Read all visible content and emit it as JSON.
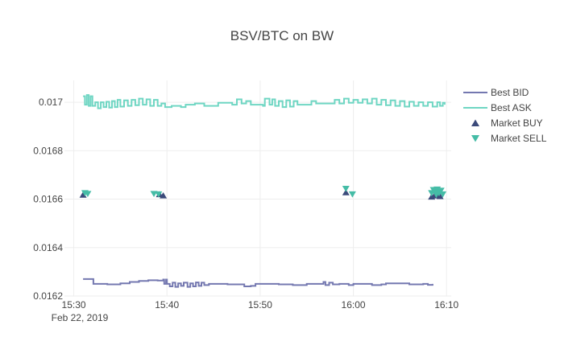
{
  "chart_data": {
    "type": "line",
    "title": "BSV/BTC on BW",
    "xlabel": "",
    "ylabel": "",
    "x_range_minutes": [
      -1,
      40.5
    ],
    "ylim": [
      0.0162,
      0.01709
    ],
    "y_ticks": [
      {
        "value": 0.0162,
        "label": "0.0162"
      },
      {
        "value": 0.0164,
        "label": "0.0164"
      },
      {
        "value": 0.0166,
        "label": "0.0166"
      },
      {
        "value": 0.0168,
        "label": "0.0168"
      },
      {
        "value": 0.017,
        "label": "0.017"
      }
    ],
    "x_ticks": [
      {
        "minute": 0,
        "label": "15:30"
      },
      {
        "minute": 10,
        "label": "15:40"
      },
      {
        "minute": 20,
        "label": "15:50"
      },
      {
        "minute": 30,
        "label": "16:00"
      },
      {
        "minute": 40,
        "label": "16:10"
      }
    ],
    "x_date_label": "Feb 22, 2019",
    "legend_position": "top-right",
    "grid": true,
    "series": [
      {
        "name": "Best BID",
        "kind": "line",
        "color": "#7478b0",
        "points": [
          [
            1.0,
            0.01627
          ],
          [
            2.0,
            0.01627
          ],
          [
            2.1,
            0.01625
          ],
          [
            3.5,
            0.01625
          ],
          [
            3.6,
            0.016248
          ],
          [
            5.0,
            0.016252
          ],
          [
            6.0,
            0.016258
          ],
          [
            7.0,
            0.016262
          ],
          [
            8.0,
            0.016265
          ],
          [
            9.0,
            0.016264
          ],
          [
            9.6,
            0.016268
          ],
          [
            9.7,
            0.01625
          ],
          [
            9.9,
            0.016268
          ],
          [
            10.0,
            0.01625
          ],
          [
            10.3,
            0.01624
          ],
          [
            10.6,
            0.016255
          ],
          [
            10.9,
            0.016238
          ],
          [
            11.2,
            0.016252
          ],
          [
            11.5,
            0.016242
          ],
          [
            11.8,
            0.016255
          ],
          [
            12.2,
            0.016238
          ],
          [
            12.5,
            0.016252
          ],
          [
            12.8,
            0.01624
          ],
          [
            13.1,
            0.016256
          ],
          [
            13.4,
            0.016242
          ],
          [
            13.7,
            0.016255
          ],
          [
            14.0,
            0.016245
          ],
          [
            14.5,
            0.01625
          ],
          [
            15.5,
            0.01625
          ],
          [
            16.5,
            0.016248
          ],
          [
            17.5,
            0.016248
          ],
          [
            18.2,
            0.016248
          ],
          [
            18.3,
            0.01624
          ],
          [
            19.0,
            0.016242
          ],
          [
            19.5,
            0.01625
          ],
          [
            21.0,
            0.01625
          ],
          [
            22.0,
            0.016248
          ],
          [
            23.0,
            0.016248
          ],
          [
            23.5,
            0.016245
          ],
          [
            25.0,
            0.01625
          ],
          [
            26.5,
            0.01625
          ],
          [
            26.8,
            0.016258
          ],
          [
            27.0,
            0.016245
          ],
          [
            27.4,
            0.016255
          ],
          [
            27.8,
            0.016248
          ],
          [
            28.5,
            0.01625
          ],
          [
            29.5,
            0.016245
          ],
          [
            30.0,
            0.01625
          ],
          [
            31.0,
            0.01625
          ],
          [
            32.0,
            0.016245
          ],
          [
            33.0,
            0.016248
          ],
          [
            33.5,
            0.016252
          ],
          [
            35.0,
            0.016252
          ],
          [
            36.0,
            0.016248
          ],
          [
            37.0,
            0.016248
          ],
          [
            37.5,
            0.01625
          ],
          [
            38.0,
            0.016246
          ],
          [
            38.5,
            0.01625
          ]
        ]
      },
      {
        "name": "Best ASK",
        "kind": "line",
        "color": "#6fd6c3",
        "points": [
          [
            1.0,
            0.017025
          ],
          [
            1.2,
            0.01699
          ],
          [
            1.4,
            0.01703
          ],
          [
            1.6,
            0.016985
          ],
          [
            1.8,
            0.017025
          ],
          [
            2.0,
            0.016985
          ],
          [
            2.3,
            0.017
          ],
          [
            2.6,
            0.016975
          ],
          [
            2.9,
            0.017
          ],
          [
            3.2,
            0.01698
          ],
          [
            3.5,
            0.017002
          ],
          [
            3.8,
            0.016978
          ],
          [
            4.1,
            0.017005
          ],
          [
            4.4,
            0.01698
          ],
          [
            4.7,
            0.01701
          ],
          [
            5.0,
            0.016982
          ],
          [
            5.4,
            0.017008
          ],
          [
            5.8,
            0.016985
          ],
          [
            6.2,
            0.01701
          ],
          [
            6.6,
            0.016988
          ],
          [
            7.0,
            0.017015
          ],
          [
            7.4,
            0.01699
          ],
          [
            7.8,
            0.017012
          ],
          [
            8.2,
            0.016985
          ],
          [
            8.6,
            0.01701
          ],
          [
            9.0,
            0.016985
          ],
          [
            9.4,
            0.016995
          ],
          [
            9.8,
            0.01698
          ],
          [
            10.5,
            0.016985
          ],
          [
            11.5,
            0.01698
          ],
          [
            12.0,
            0.01699
          ],
          [
            13.0,
            0.016995
          ],
          [
            14.0,
            0.016985
          ],
          [
            15.0,
            0.016985
          ],
          [
            15.5,
            0.016998
          ],
          [
            16.5,
            0.016998
          ],
          [
            17.0,
            0.01699
          ],
          [
            17.5,
            0.017012
          ],
          [
            18.0,
            0.016995
          ],
          [
            18.5,
            0.017005
          ],
          [
            19.0,
            0.01699
          ],
          [
            20.0,
            0.01699
          ],
          [
            20.3,
            0.016985
          ],
          [
            20.5,
            0.017015
          ],
          [
            21.0,
            0.01699
          ],
          [
            21.3,
            0.017012
          ],
          [
            21.6,
            0.016985
          ],
          [
            22.0,
            0.017005
          ],
          [
            22.4,
            0.01698
          ],
          [
            22.8,
            0.017008
          ],
          [
            23.2,
            0.016982
          ],
          [
            23.6,
            0.017005
          ],
          [
            24.0,
            0.01699
          ],
          [
            25.0,
            0.01699
          ],
          [
            25.5,
            0.017005
          ],
          [
            26.0,
            0.016995
          ],
          [
            27.5,
            0.016995
          ],
          [
            28.0,
            0.01701
          ],
          [
            28.5,
            0.016995
          ],
          [
            29.0,
            0.017015
          ],
          [
            29.5,
            0.016998
          ],
          [
            30.0,
            0.01701
          ],
          [
            30.5,
            0.016998
          ],
          [
            31.0,
            0.017012
          ],
          [
            31.5,
            0.016995
          ],
          [
            32.0,
            0.017015
          ],
          [
            32.5,
            0.01699
          ],
          [
            33.0,
            0.01701
          ],
          [
            33.5,
            0.016988
          ],
          [
            34.0,
            0.017008
          ],
          [
            34.5,
            0.016985
          ],
          [
            35.0,
            0.017005
          ],
          [
            35.5,
            0.016982
          ],
          [
            36.0,
            0.017002
          ],
          [
            36.5,
            0.016985
          ],
          [
            37.0,
            0.017
          ],
          [
            37.5,
            0.016985
          ],
          [
            38.0,
            0.017
          ],
          [
            38.5,
            0.016982
          ],
          [
            39.0,
            0.017
          ],
          [
            39.3,
            0.016985
          ],
          [
            39.6,
            0.016998
          ],
          [
            39.8,
            0.01699
          ]
        ]
      },
      {
        "name": "Market BUY",
        "kind": "marker",
        "symbol": "triangle-up",
        "color": "#3b4a7a",
        "points": [
          [
            1.0,
            0.016618
          ],
          [
            9.2,
            0.01662
          ],
          [
            9.6,
            0.016615
          ],
          [
            29.2,
            0.016628
          ],
          [
            38.4,
            0.01661
          ],
          [
            38.7,
            0.016615
          ],
          [
            39.0,
            0.01662
          ],
          [
            39.3,
            0.016612
          ]
        ]
      },
      {
        "name": "Market SELL",
        "kind": "marker",
        "symbol": "triangle-down",
        "color": "#45bca6",
        "points": [
          [
            1.2,
            0.016625
          ],
          [
            1.5,
            0.016622
          ],
          [
            8.6,
            0.016622
          ],
          [
            9.1,
            0.01662
          ],
          [
            29.2,
            0.016643
          ],
          [
            29.9,
            0.01662
          ],
          [
            38.4,
            0.016625
          ],
          [
            38.6,
            0.016638
          ],
          [
            38.8,
            0.01663
          ],
          [
            39.0,
            0.01664
          ],
          [
            39.2,
            0.016625
          ],
          [
            39.4,
            0.016635
          ],
          [
            39.6,
            0.01662
          ],
          [
            38.9,
            0.016618
          ]
        ]
      }
    ]
  }
}
